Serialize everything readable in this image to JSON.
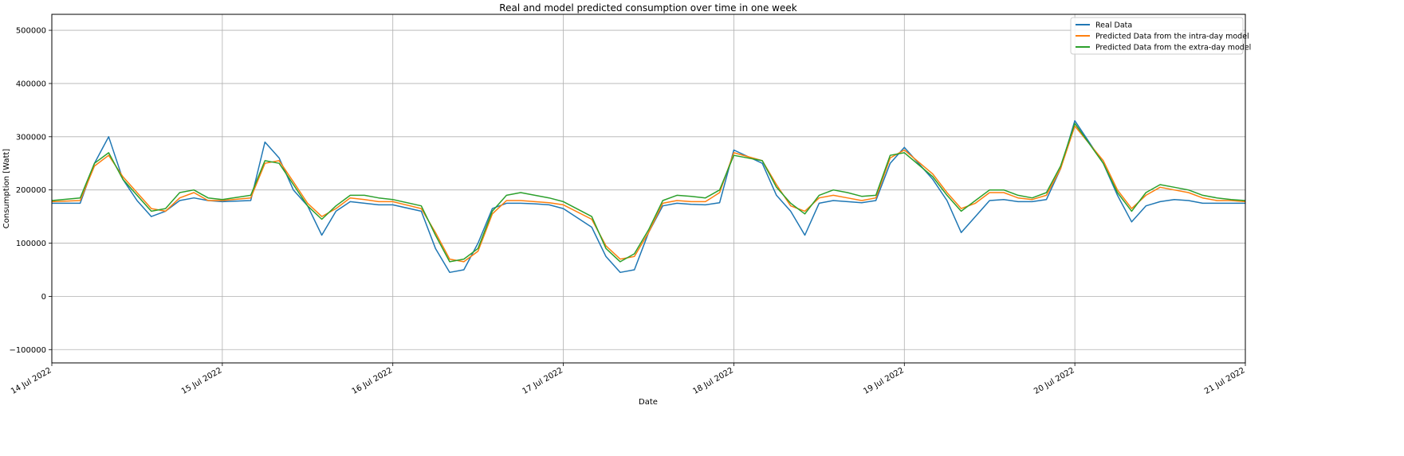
{
  "chart_data": {
    "type": "line",
    "title": "Real and model predicted consumption over time in one week",
    "xlabel": "Date",
    "ylabel": "Consumption [Watt]",
    "x_range": [
      "2022-07-14",
      "2022-07-21"
    ],
    "ylim": [
      -125000,
      530000
    ],
    "yticks": [
      -100000,
      0,
      100000,
      200000,
      300000,
      400000,
      500000
    ],
    "ytick_labels": [
      "−100000",
      "0",
      "100000",
      "200000",
      "300000",
      "400000",
      "500000"
    ],
    "xticks": [
      "2022-07-14",
      "2022-07-15",
      "2022-07-16",
      "2022-07-17",
      "2022-07-18",
      "2022-07-19",
      "2022-07-20",
      "2022-07-21"
    ],
    "xtick_labels": [
      "14 Jul 2022",
      "15 Jul 2022",
      "16 Jul 2022",
      "17 Jul 2022",
      "18 Jul 2022",
      "19 Jul 2022",
      "20 Jul 2022",
      "21 Jul 2022"
    ],
    "grid": true,
    "legend_position": "top-right",
    "series": [
      {
        "name": "Real Data",
        "color": "#1f77b4",
        "x": [
          "2022-07-14 00:00",
          "2022-07-14 04:00",
          "2022-07-14 06:00",
          "2022-07-14 08:00",
          "2022-07-14 10:00",
          "2022-07-14 12:00",
          "2022-07-14 14:00",
          "2022-07-14 16:00",
          "2022-07-14 18:00",
          "2022-07-14 20:00",
          "2022-07-14 22:00",
          "2022-07-15 00:00",
          "2022-07-15 04:00",
          "2022-07-15 06:00",
          "2022-07-15 08:00",
          "2022-07-15 10:00",
          "2022-07-15 12:00",
          "2022-07-15 14:00",
          "2022-07-15 16:00",
          "2022-07-15 18:00",
          "2022-07-15 20:00",
          "2022-07-15 22:00",
          "2022-07-16 00:00",
          "2022-07-16 04:00",
          "2022-07-16 06:00",
          "2022-07-16 08:00",
          "2022-07-16 10:00",
          "2022-07-16 12:00",
          "2022-07-16 14:00",
          "2022-07-16 16:00",
          "2022-07-16 18:00",
          "2022-07-16 20:00",
          "2022-07-16 22:00",
          "2022-07-17 00:00",
          "2022-07-17 04:00",
          "2022-07-17 06:00",
          "2022-07-17 08:00",
          "2022-07-17 10:00",
          "2022-07-17 12:00",
          "2022-07-17 14:00",
          "2022-07-17 16:00",
          "2022-07-17 18:00",
          "2022-07-17 20:00",
          "2022-07-17 22:00",
          "2022-07-18 00:00",
          "2022-07-18 04:00",
          "2022-07-18 06:00",
          "2022-07-18 08:00",
          "2022-07-18 10:00",
          "2022-07-18 12:00",
          "2022-07-18 14:00",
          "2022-07-18 16:00",
          "2022-07-18 18:00",
          "2022-07-18 20:00",
          "2022-07-18 22:00",
          "2022-07-19 00:00",
          "2022-07-19 04:00",
          "2022-07-19 06:00",
          "2022-07-19 08:00",
          "2022-07-19 10:00",
          "2022-07-19 12:00",
          "2022-07-19 14:00",
          "2022-07-19 16:00",
          "2022-07-19 18:00",
          "2022-07-19 20:00",
          "2022-07-19 22:00",
          "2022-07-20 00:00",
          "2022-07-20 04:00",
          "2022-07-20 06:00",
          "2022-07-20 08:00",
          "2022-07-20 10:00",
          "2022-07-20 12:00",
          "2022-07-20 14:00",
          "2022-07-20 16:00",
          "2022-07-20 18:00",
          "2022-07-20 20:00",
          "2022-07-20 22:00",
          "2022-07-21 00:00"
        ],
        "y": [
          175000,
          175000,
          250000,
          300000,
          220000,
          180000,
          150000,
          160000,
          180000,
          185000,
          180000,
          178000,
          180000,
          290000,
          260000,
          200000,
          170000,
          115000,
          160000,
          178000,
          175000,
          172000,
          172000,
          160000,
          90000,
          45000,
          50000,
          100000,
          165000,
          175000,
          175000,
          174000,
          172000,
          165000,
          130000,
          75000,
          45000,
          50000,
          120000,
          170000,
          175000,
          173000,
          172000,
          176000,
          275000,
          250000,
          190000,
          160000,
          115000,
          175000,
          180000,
          178000,
          176000,
          180000,
          250000,
          280000,
          220000,
          180000,
          120000,
          150000,
          180000,
          182000,
          178000,
          178000,
          182000,
          240000,
          330000,
          250000,
          190000,
          140000,
          170000,
          178000,
          182000,
          180000,
          175000,
          175000,
          175000,
          175000
        ]
      },
      {
        "name": "Predicted Data from the intra-day model",
        "color": "#ff7f0e",
        "x": [
          "2022-07-14 00:00",
          "2022-07-14 04:00",
          "2022-07-14 06:00",
          "2022-07-14 08:00",
          "2022-07-14 10:00",
          "2022-07-14 12:00",
          "2022-07-14 14:00",
          "2022-07-14 16:00",
          "2022-07-14 18:00",
          "2022-07-14 20:00",
          "2022-07-14 22:00",
          "2022-07-15 00:00",
          "2022-07-15 04:00",
          "2022-07-15 06:00",
          "2022-07-15 08:00",
          "2022-07-15 10:00",
          "2022-07-15 12:00",
          "2022-07-15 14:00",
          "2022-07-15 16:00",
          "2022-07-15 18:00",
          "2022-07-15 20:00",
          "2022-07-15 22:00",
          "2022-07-16 00:00",
          "2022-07-16 04:00",
          "2022-07-16 06:00",
          "2022-07-16 08:00",
          "2022-07-16 10:00",
          "2022-07-16 12:00",
          "2022-07-16 14:00",
          "2022-07-16 16:00",
          "2022-07-16 18:00",
          "2022-07-16 20:00",
          "2022-07-16 22:00",
          "2022-07-17 00:00",
          "2022-07-17 04:00",
          "2022-07-17 06:00",
          "2022-07-17 08:00",
          "2022-07-17 10:00",
          "2022-07-17 12:00",
          "2022-07-17 14:00",
          "2022-07-17 16:00",
          "2022-07-17 18:00",
          "2022-07-17 20:00",
          "2022-07-17 22:00",
          "2022-07-18 00:00",
          "2022-07-18 04:00",
          "2022-07-18 06:00",
          "2022-07-18 08:00",
          "2022-07-18 10:00",
          "2022-07-18 12:00",
          "2022-07-18 14:00",
          "2022-07-18 16:00",
          "2022-07-18 18:00",
          "2022-07-18 20:00",
          "2022-07-18 22:00",
          "2022-07-19 00:00",
          "2022-07-19 04:00",
          "2022-07-19 06:00",
          "2022-07-19 08:00",
          "2022-07-19 10:00",
          "2022-07-19 12:00",
          "2022-07-19 14:00",
          "2022-07-19 16:00",
          "2022-07-19 18:00",
          "2022-07-19 20:00",
          "2022-07-19 22:00",
          "2022-07-20 00:00",
          "2022-07-20 04:00",
          "2022-07-20 06:00",
          "2022-07-20 08:00",
          "2022-07-20 10:00",
          "2022-07-20 12:00",
          "2022-07-20 14:00",
          "2022-07-20 16:00",
          "2022-07-20 18:00",
          "2022-07-20 20:00",
          "2022-07-20 22:00",
          "2022-07-21 00:00"
        ],
        "y": [
          178000,
          180000,
          245000,
          265000,
          225000,
          195000,
          165000,
          160000,
          185000,
          195000,
          180000,
          180000,
          185000,
          250000,
          255000,
          215000,
          175000,
          150000,
          165000,
          185000,
          182000,
          178000,
          178000,
          165000,
          120000,
          70000,
          65000,
          85000,
          155000,
          180000,
          180000,
          178000,
          176000,
          172000,
          145000,
          95000,
          70000,
          75000,
          120000,
          175000,
          180000,
          178000,
          178000,
          195000,
          270000,
          255000,
          210000,
          170000,
          160000,
          185000,
          190000,
          185000,
          180000,
          185000,
          260000,
          275000,
          230000,
          195000,
          165000,
          175000,
          195000,
          195000,
          185000,
          182000,
          190000,
          240000,
          320000,
          255000,
          200000,
          165000,
          190000,
          205000,
          200000,
          195000,
          185000,
          180000,
          180000,
          178000
        ]
      },
      {
        "name": "Predicted Data from the extra-day model",
        "color": "#2ca02c",
        "x": [
          "2022-07-14 00:00",
          "2022-07-14 04:00",
          "2022-07-14 06:00",
          "2022-07-14 08:00",
          "2022-07-14 10:00",
          "2022-07-14 12:00",
          "2022-07-14 14:00",
          "2022-07-14 16:00",
          "2022-07-14 18:00",
          "2022-07-14 20:00",
          "2022-07-14 22:00",
          "2022-07-15 00:00",
          "2022-07-15 04:00",
          "2022-07-15 06:00",
          "2022-07-15 08:00",
          "2022-07-15 10:00",
          "2022-07-15 12:00",
          "2022-07-15 14:00",
          "2022-07-15 16:00",
          "2022-07-15 18:00",
          "2022-07-15 20:00",
          "2022-07-15 22:00",
          "2022-07-16 00:00",
          "2022-07-16 04:00",
          "2022-07-16 06:00",
          "2022-07-16 08:00",
          "2022-07-16 10:00",
          "2022-07-16 12:00",
          "2022-07-16 14:00",
          "2022-07-16 16:00",
          "2022-07-16 18:00",
          "2022-07-16 20:00",
          "2022-07-16 22:00",
          "2022-07-17 00:00",
          "2022-07-17 04:00",
          "2022-07-17 06:00",
          "2022-07-17 08:00",
          "2022-07-17 10:00",
          "2022-07-17 12:00",
          "2022-07-17 14:00",
          "2022-07-17 16:00",
          "2022-07-17 18:00",
          "2022-07-17 20:00",
          "2022-07-17 22:00",
          "2022-07-18 00:00",
          "2022-07-18 04:00",
          "2022-07-18 06:00",
          "2022-07-18 08:00",
          "2022-07-18 10:00",
          "2022-07-18 12:00",
          "2022-07-18 14:00",
          "2022-07-18 16:00",
          "2022-07-18 18:00",
          "2022-07-18 20:00",
          "2022-07-18 22:00",
          "2022-07-19 00:00",
          "2022-07-19 04:00",
          "2022-07-19 06:00",
          "2022-07-19 08:00",
          "2022-07-19 10:00",
          "2022-07-19 12:00",
          "2022-07-19 14:00",
          "2022-07-19 16:00",
          "2022-07-19 18:00",
          "2022-07-19 20:00",
          "2022-07-19 22:00",
          "2022-07-20 00:00",
          "2022-07-20 04:00",
          "2022-07-20 06:00",
          "2022-07-20 08:00",
          "2022-07-20 10:00",
          "2022-07-20 12:00",
          "2022-07-20 14:00",
          "2022-07-20 16:00",
          "2022-07-20 18:00",
          "2022-07-20 20:00",
          "2022-07-20 22:00",
          "2022-07-21 00:00"
        ],
        "y": [
          180000,
          185000,
          250000,
          270000,
          220000,
          190000,
          160000,
          165000,
          195000,
          200000,
          185000,
          182000,
          190000,
          255000,
          250000,
          210000,
          170000,
          145000,
          170000,
          190000,
          190000,
          185000,
          182000,
          170000,
          115000,
          65000,
          70000,
          90000,
          160000,
          190000,
          195000,
          190000,
          185000,
          178000,
          150000,
          90000,
          65000,
          80000,
          125000,
          180000,
          190000,
          188000,
          185000,
          200000,
          265000,
          255000,
          205000,
          175000,
          155000,
          190000,
          200000,
          195000,
          188000,
          190000,
          265000,
          270000,
          225000,
          190000,
          160000,
          180000,
          200000,
          200000,
          190000,
          185000,
          195000,
          245000,
          325000,
          250000,
          195000,
          160000,
          195000,
          210000,
          205000,
          200000,
          190000,
          185000,
          182000,
          180000
        ]
      }
    ]
  }
}
